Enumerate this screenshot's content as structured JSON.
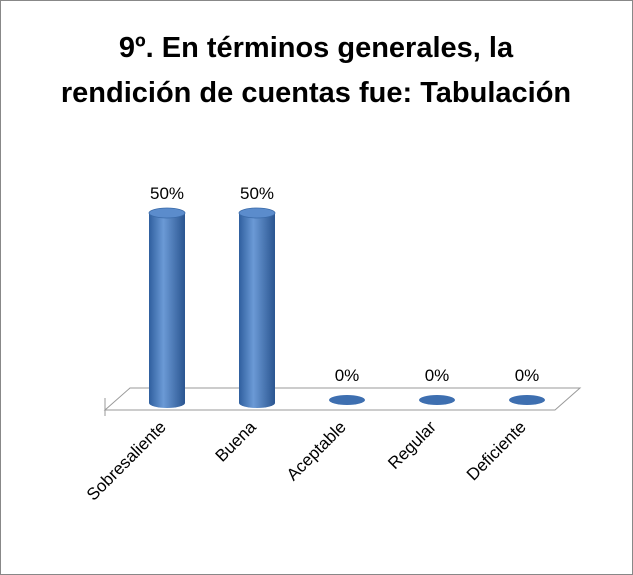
{
  "chart_data": {
    "type": "bar3d",
    "title": "9º. En términos generales, la rendición de cuentas fue: Tabulación",
    "categories": [
      "Sobresaliente",
      "Buena",
      "Aceptable",
      "Regular",
      "Deficiente"
    ],
    "values": [
      50,
      50,
      0,
      0,
      0
    ],
    "value_labels": [
      "50%",
      "50%",
      "0%",
      "0%",
      "0%"
    ],
    "color": "#4a7ebb"
  }
}
